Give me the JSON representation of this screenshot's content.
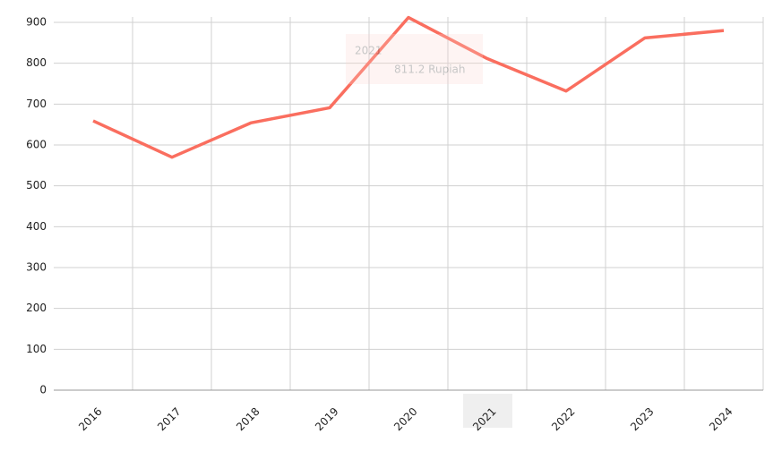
{
  "chart_data": {
    "type": "line",
    "categories": [
      "2016",
      "2017",
      "2018",
      "2019",
      "2020",
      "2021",
      "2022",
      "2023",
      "2024"
    ],
    "series": [
      {
        "values": [
          659,
          570,
          654,
          691,
          912,
          811.2,
          732,
          862,
          880
        ],
        "color": "#fa6e5f"
      }
    ],
    "ylim": [
      0,
      900
    ],
    "yticks": [
      0,
      100,
      200,
      300,
      400,
      500,
      600,
      700,
      800,
      900
    ],
    "grid": true,
    "tooltip": {
      "text": "811.2 Rupiah"
    }
  }
}
